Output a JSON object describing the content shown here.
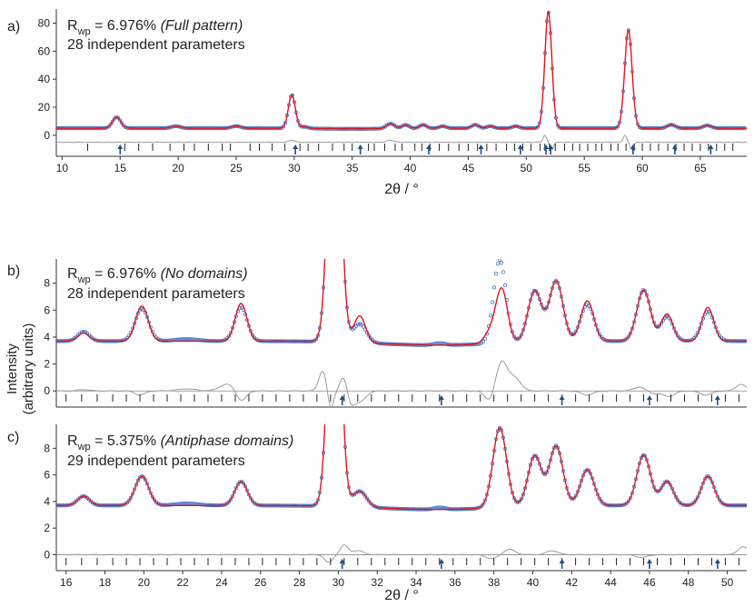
{
  "y_axis_label": [
    "Intensity",
    "(arbitrary units)"
  ],
  "colors": {
    "fit": "#e0141e",
    "observed": "#3b6fc4",
    "difference": "#9a9a9a",
    "reflection": "#222222",
    "arrow": "#1f4e8c"
  },
  "chart_data": [
    {
      "type": "line",
      "panel_label": "a)",
      "rwp_symbol": "R",
      "rwp_subscript": "wp",
      "rwp_value": "= 6.976%",
      "rwp_note": "(Full pattern)",
      "parameters_text": "28 independent parameters",
      "xlabel": "2θ / °",
      "xlim": [
        9.5,
        69
      ],
      "ylim": [
        -15,
        90
      ],
      "x_ticks": [
        10,
        15,
        20,
        25,
        30,
        35,
        40,
        45,
        50,
        55,
        60,
        65
      ],
      "y_ticks": [
        0,
        20,
        40,
        60,
        80
      ],
      "background": 5,
      "difference_offset": -5,
      "observed_peaks": [
        [
          14.7,
          8,
          0.35
        ],
        [
          19.8,
          1.5,
          0.4
        ],
        [
          25.0,
          1.5,
          0.4
        ],
        [
          29.8,
          24,
          0.3
        ],
        [
          30.9,
          1.2,
          0.3
        ],
        [
          38.3,
          3.5,
          0.35
        ],
        [
          39.6,
          2.5,
          0.3
        ],
        [
          41.1,
          2.5,
          0.3
        ],
        [
          42.8,
          1.5,
          0.3
        ],
        [
          45.6,
          2.5,
          0.3
        ],
        [
          46.9,
          1.5,
          0.3
        ],
        [
          49.1,
          1.5,
          0.3
        ],
        [
          51.9,
          83,
          0.3
        ],
        [
          58.8,
          70,
          0.32
        ],
        [
          62.5,
          2.5,
          0.35
        ],
        [
          65.6,
          2,
          0.35
        ]
      ],
      "fit_peaks": [
        [
          14.7,
          8,
          0.35
        ],
        [
          19.8,
          1.5,
          0.4
        ],
        [
          25.0,
          1.5,
          0.4
        ],
        [
          29.8,
          24,
          0.3
        ],
        [
          30.9,
          1.2,
          0.3
        ],
        [
          38.3,
          3.5,
          0.35
        ],
        [
          39.6,
          2.5,
          0.3
        ],
        [
          41.1,
          2.5,
          0.3
        ],
        [
          42.8,
          1.5,
          0.3
        ],
        [
          45.6,
          2.5,
          0.3
        ],
        [
          46.9,
          1.5,
          0.3
        ],
        [
          49.1,
          1.5,
          0.3
        ],
        [
          51.9,
          83,
          0.3
        ],
        [
          58.8,
          70,
          0.32
        ],
        [
          62.5,
          2.5,
          0.35
        ],
        [
          65.6,
          2,
          0.35
        ]
      ],
      "difference_features": [
        [
          29.8,
          1.5,
          0.25
        ],
        [
          38.3,
          1.5,
          0.3
        ],
        [
          51.6,
          5,
          0.15
        ],
        [
          52.2,
          -5,
          0.15
        ],
        [
          58.5,
          5,
          0.15
        ],
        [
          59.1,
          -5,
          0.15
        ]
      ],
      "tick_marks": [
        12.2,
        15.4,
        16.6,
        17.8,
        19.3,
        20.5,
        21.4,
        22.6,
        23.8,
        24.5,
        26.2,
        27.0,
        28.1,
        29.2,
        30.5,
        31.2,
        32.1,
        33.3,
        34.3,
        35.0,
        36.4,
        36.9,
        37.8,
        38.7,
        39.3,
        40.4,
        41.0,
        41.7,
        42.5,
        43.3,
        44.2,
        45.0,
        45.8,
        46.6,
        47.4,
        48.3,
        49.0,
        49.7,
        50.4,
        51.2,
        51.6,
        52.0,
        52.5,
        53.3,
        54.0,
        54.6,
        55.3,
        56.0,
        56.5,
        57.3,
        57.9,
        58.6,
        59.3,
        60.0,
        60.7,
        61.4,
        62.2,
        62.9,
        63.6,
        64.3,
        65.0,
        65.7,
        66.4,
        67.1,
        67.8
      ],
      "arrow_positions": [
        15.0,
        30.1,
        35.7,
        41.6,
        46.1,
        49.5,
        51.7,
        52.1,
        59.2,
        62.8,
        65.9
      ]
    },
    {
      "type": "line",
      "panel_label": "b)",
      "rwp_symbol": "R",
      "rwp_subscript": "wp",
      "rwp_value": "= 6.976%",
      "rwp_note": "(No domains)",
      "parameters_text": "28 independent parameters",
      "xlabel": "",
      "xlim": [
        15.5,
        51
      ],
      "ylim": [
        -1.2,
        9.8
      ],
      "x_ticks": [],
      "y_ticks": [
        0,
        2,
        4,
        6,
        8
      ],
      "background": 3.7,
      "difference_offset": 0,
      "observed_peaks": [
        [
          16.9,
          0.7,
          0.3
        ],
        [
          19.9,
          2.4,
          0.35
        ],
        [
          22.2,
          0.15,
          0.6
        ],
        [
          25.0,
          2.5,
          0.32
        ],
        [
          29.8,
          24,
          0.3
        ],
        [
          31.1,
          1.4,
          0.35
        ],
        [
          35.2,
          0.15,
          0.3
        ],
        [
          38.3,
          6.2,
          0.32
        ],
        [
          40.1,
          3.8,
          0.35
        ],
        [
          41.2,
          4.5,
          0.35
        ],
        [
          42.8,
          2.7,
          0.35
        ],
        [
          45.7,
          3.8,
          0.35
        ],
        [
          46.9,
          1.8,
          0.32
        ],
        [
          49.0,
          2.2,
          0.33
        ]
      ],
      "fit_peaks": [
        [
          16.9,
          0.6,
          0.3
        ],
        [
          19.9,
          2.6,
          0.32
        ],
        [
          25.0,
          2.8,
          0.3
        ],
        [
          29.8,
          24,
          0.3
        ],
        [
          31.1,
          2.0,
          0.3
        ],
        [
          37.8,
          0.8,
          0.3
        ],
        [
          38.4,
          4.0,
          0.3
        ],
        [
          40.1,
          3.8,
          0.35
        ],
        [
          41.2,
          4.5,
          0.35
        ],
        [
          42.8,
          3.0,
          0.33
        ],
        [
          45.7,
          3.8,
          0.35
        ],
        [
          46.9,
          2.0,
          0.3
        ],
        [
          49.0,
          2.5,
          0.3
        ]
      ],
      "difference_features": [
        [
          16.9,
          0.1,
          0.3
        ],
        [
          19.8,
          -0.3,
          0.25
        ],
        [
          22.2,
          0.15,
          0.5
        ],
        [
          24.3,
          0.5,
          0.4
        ],
        [
          25.0,
          -0.8,
          0.25
        ],
        [
          29.2,
          1.5,
          0.2
        ],
        [
          29.6,
          -1.4,
          0.15
        ],
        [
          30.3,
          1.2,
          0.2
        ],
        [
          30.6,
          -1.0,
          0.2
        ],
        [
          31.1,
          -0.8,
          0.3
        ],
        [
          37.8,
          -0.8,
          0.25
        ],
        [
          38.4,
          2.2,
          0.3
        ],
        [
          39.1,
          0.9,
          0.3
        ],
        [
          42.8,
          -0.3,
          0.3
        ],
        [
          45.5,
          0.3,
          0.3
        ],
        [
          46.2,
          -0.2,
          0.3
        ],
        [
          47.0,
          -0.4,
          0.3
        ],
        [
          48.9,
          -0.3,
          0.3
        ],
        [
          50.7,
          0.5,
          0.25
        ]
      ],
      "tick_marks": [
        16.0,
        16.8,
        17.6,
        18.4,
        19.1,
        19.8,
        20.5,
        21.2,
        21.9,
        22.6,
        23.3,
        24.0,
        24.7,
        25.4,
        26.1,
        26.8,
        27.5,
        28.2,
        28.9,
        29.6,
        30.3,
        31.0,
        31.7,
        32.4,
        33.1,
        33.8,
        34.5,
        35.2,
        35.9,
        36.6,
        37.3,
        38.0,
        38.7,
        39.4,
        40.1,
        40.8,
        41.5,
        42.2,
        42.9,
        43.6,
        44.3,
        45.0,
        45.7,
        46.4,
        47.1,
        47.8,
        48.5,
        49.2,
        49.9,
        50.6
      ],
      "arrow_positions": [
        30.2,
        35.3,
        41.5,
        46.0,
        49.5
      ]
    },
    {
      "type": "line",
      "panel_label": "c)",
      "rwp_symbol": "R",
      "rwp_subscript": "wp",
      "rwp_value": "= 5.375%",
      "rwp_note": "(Antiphase domains)",
      "parameters_text": "29 independent parameters",
      "xlabel": "2θ / °",
      "xlim": [
        15.5,
        51
      ],
      "ylim": [
        -1.2,
        9.8
      ],
      "x_ticks": [
        16,
        18,
        20,
        22,
        24,
        26,
        28,
        30,
        32,
        34,
        36,
        38,
        40,
        42,
        44,
        46,
        48,
        50
      ],
      "y_ticks": [
        0,
        2,
        4,
        6,
        8
      ],
      "background": 3.7,
      "difference_offset": 0,
      "observed_peaks": [
        [
          16.9,
          0.7,
          0.3
        ],
        [
          19.9,
          2.2,
          0.35
        ],
        [
          22.2,
          0.15,
          0.6
        ],
        [
          25.0,
          1.8,
          0.32
        ],
        [
          29.8,
          24,
          0.3
        ],
        [
          31.1,
          1.2,
          0.35
        ],
        [
          35.2,
          0.15,
          0.3
        ],
        [
          38.3,
          6.0,
          0.35
        ],
        [
          40.1,
          3.8,
          0.35
        ],
        [
          41.2,
          4.5,
          0.35
        ],
        [
          42.8,
          2.7,
          0.35
        ],
        [
          45.7,
          3.8,
          0.35
        ],
        [
          46.9,
          1.8,
          0.32
        ],
        [
          49.0,
          2.2,
          0.33
        ]
      ],
      "fit_peaks": [
        [
          16.9,
          0.7,
          0.3
        ],
        [
          19.9,
          2.2,
          0.35
        ],
        [
          25.0,
          1.8,
          0.32
        ],
        [
          29.8,
          24,
          0.3
        ],
        [
          31.1,
          1.2,
          0.35
        ],
        [
          38.3,
          6.0,
          0.35
        ],
        [
          40.1,
          3.8,
          0.35
        ],
        [
          41.2,
          4.5,
          0.35
        ],
        [
          42.8,
          2.7,
          0.35
        ],
        [
          45.7,
          3.8,
          0.35
        ],
        [
          46.9,
          1.8,
          0.32
        ],
        [
          49.0,
          2.2,
          0.33
        ]
      ],
      "difference_features": [
        [
          29.5,
          -0.6,
          0.2
        ],
        [
          30.3,
          0.7,
          0.2
        ],
        [
          31.0,
          0.3,
          0.3
        ],
        [
          37.9,
          -0.3,
          0.3
        ],
        [
          38.8,
          0.4,
          0.3
        ],
        [
          41.0,
          0.3,
          0.3
        ],
        [
          45.6,
          -0.2,
          0.3
        ],
        [
          50.8,
          0.6,
          0.25
        ]
      ],
      "tick_marks": [
        16.0,
        16.8,
        17.6,
        18.4,
        19.1,
        19.8,
        20.5,
        21.2,
        21.9,
        22.6,
        23.3,
        24.0,
        24.7,
        25.4,
        26.1,
        26.8,
        27.5,
        28.2,
        28.9,
        29.6,
        30.3,
        31.0,
        31.7,
        32.4,
        33.1,
        33.8,
        34.5,
        35.2,
        35.9,
        36.6,
        37.3,
        38.0,
        38.7,
        39.4,
        40.1,
        40.8,
        41.5,
        42.2,
        42.9,
        43.6,
        44.3,
        45.0,
        45.7,
        46.4,
        47.1,
        47.8,
        48.5,
        49.2,
        49.9,
        50.6
      ],
      "arrow_positions": [
        30.2,
        35.3,
        41.5,
        46.0,
        49.5
      ]
    }
  ]
}
